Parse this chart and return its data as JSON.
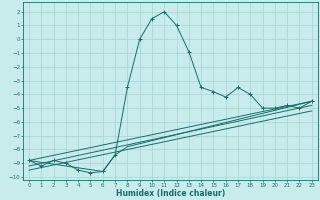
{
  "xlabel": "Humidex (Indice chaleur)",
  "bg_color": "#c8ecec",
  "grid_color": "#a8d4d4",
  "line_color": "#1a6b6b",
  "xlim": [
    -0.5,
    23.5
  ],
  "ylim": [
    -10.2,
    2.7
  ],
  "xticks": [
    0,
    1,
    2,
    3,
    4,
    5,
    6,
    7,
    8,
    9,
    10,
    11,
    12,
    13,
    14,
    15,
    16,
    17,
    18,
    19,
    20,
    21,
    22,
    23
  ],
  "yticks": [
    -10,
    -9,
    -8,
    -7,
    -6,
    -5,
    -4,
    -3,
    -2,
    -1,
    0,
    1,
    2
  ],
  "series": [
    {
      "x": [
        0,
        1,
        2,
        3,
        4,
        5,
        6,
        7,
        8,
        9,
        10,
        11,
        12,
        13,
        14,
        15,
        16,
        17,
        18,
        19,
        20,
        21,
        22,
        23
      ],
      "y": [
        -8.8,
        -9.2,
        -8.8,
        -9.0,
        -9.5,
        -9.7,
        -9.6,
        -8.4,
        -3.5,
        0.0,
        1.5,
        2.0,
        1.0,
        -0.9,
        -3.5,
        -3.8,
        -4.2,
        -3.5,
        -4.0,
        -5.0,
        -5.0,
        -4.8,
        -5.0,
        -4.5
      ],
      "marker": true
    },
    {
      "x": [
        0,
        6,
        7,
        8,
        23
      ],
      "y": [
        -8.8,
        -9.6,
        -8.4,
        -7.8,
        -4.5
      ],
      "marker": false
    },
    {
      "x": [
        0,
        23
      ],
      "y": [
        -8.8,
        -4.5
      ],
      "marker": false
    },
    {
      "x": [
        0,
        23
      ],
      "y": [
        -9.2,
        -4.8
      ],
      "marker": false
    },
    {
      "x": [
        0,
        23
      ],
      "y": [
        -9.5,
        -5.2
      ],
      "marker": false
    }
  ]
}
